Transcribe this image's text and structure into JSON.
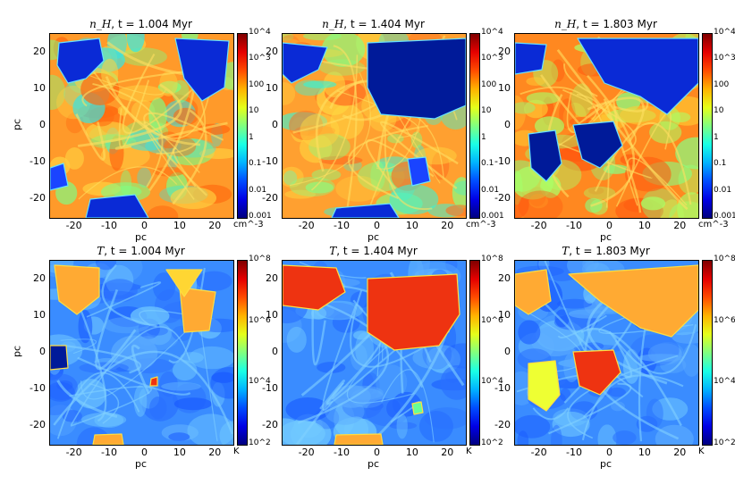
{
  "chart_data": [
    {
      "type": "heatmap",
      "title_var": "n_H",
      "title_time": "t = 1.004 Myr",
      "title": "n_H, t = 1.004 Myr",
      "xlabel": "pc",
      "ylabel": "pc",
      "xlim": [
        -27,
        25
      ],
      "ylim": [
        -25,
        25
      ],
      "x_ticks": [
        "-20",
        "-10",
        "0",
        "10",
        "20"
      ],
      "y_ticks": [
        "20",
        "10",
        "0",
        "-10",
        "-20"
      ],
      "colorbar": {
        "scale": "log",
        "range": [
          0.001,
          10000
        ],
        "tick_labels": [
          "10^4",
          "10^3",
          "100",
          "10",
          "1",
          "0.1",
          "0.01",
          "0.001"
        ],
        "unit": "cm^-3",
        "colormap": "jet"
      },
      "dominant_colors": [
        "#ff8c1a",
        "#ffd633",
        "#66ff99",
        "#0033cc"
      ]
    },
    {
      "type": "heatmap",
      "title_var": "n_H",
      "title_time": "t = 1.404 Myr",
      "title": "n_H, t = 1.404 Myr",
      "xlabel": "pc",
      "ylabel": "",
      "xlim": [
        -27,
        25
      ],
      "ylim": [
        -25,
        25
      ],
      "x_ticks": [
        "-20",
        "-10",
        "0",
        "10",
        "20"
      ],
      "y_ticks": [
        "20",
        "10",
        "0",
        "-10",
        "-20"
      ],
      "colorbar": {
        "scale": "log",
        "range": [
          0.001,
          10000
        ],
        "tick_labels": [
          "10^4",
          "10^3",
          "100",
          "10",
          "1",
          "0.1",
          "0.01",
          "0.001"
        ],
        "unit": "cm^-3",
        "colormap": "jet"
      },
      "dominant_colors": [
        "#ff8c1a",
        "#ffd633",
        "#66ff99",
        "#001a99"
      ]
    },
    {
      "type": "heatmap",
      "title_var": "n_H",
      "title_time": "t = 1.803 Myr",
      "title": "n_H, t = 1.803 Myr",
      "xlabel": "pc",
      "ylabel": "",
      "xlim": [
        -27,
        25
      ],
      "ylim": [
        -25,
        25
      ],
      "x_ticks": [
        "-20",
        "-10",
        "0",
        "10",
        "20"
      ],
      "y_ticks": [
        "20",
        "10",
        "0",
        "-10",
        "-20"
      ],
      "colorbar": {
        "scale": "log",
        "range": [
          0.001,
          10000
        ],
        "tick_labels": [
          "10^4",
          "10^3",
          "100",
          "10",
          "1",
          "0.1",
          "0.01",
          "0.001"
        ],
        "unit": "cm^-3",
        "colormap": "jet"
      },
      "dominant_colors": [
        "#ff7a1a",
        "#ffd633",
        "#66ff99",
        "#001a99"
      ]
    },
    {
      "type": "heatmap",
      "title_var": "T",
      "title_time": "t = 1.004 Myr",
      "title": "T, t = 1.004 Myr",
      "xlabel": "pc",
      "ylabel": "pc",
      "xlim": [
        -27,
        25
      ],
      "ylim": [
        -25,
        25
      ],
      "x_ticks": [
        "-20",
        "-10",
        "0",
        "10",
        "20"
      ],
      "y_ticks": [
        "20",
        "10",
        "0",
        "-10",
        "-20"
      ],
      "colorbar": {
        "scale": "log",
        "range": [
          100,
          100000000
        ],
        "tick_labels": [
          "10^8",
          "10^6",
          "10^4",
          "10^2"
        ],
        "unit": "K",
        "colormap": "jet"
      },
      "dominant_colors": [
        "#3385ff",
        "#66aaff",
        "#ffaa33",
        "#001a99"
      ]
    },
    {
      "type": "heatmap",
      "title_var": "T",
      "title_time": "t = 1.404 Myr",
      "title": "T, t = 1.404 Myr",
      "xlabel": "pc",
      "ylabel": "",
      "xlim": [
        -27,
        25
      ],
      "ylim": [
        -25,
        25
      ],
      "x_ticks": [
        "-20",
        "-10",
        "0",
        "10",
        "20"
      ],
      "y_ticks": [
        "20",
        "10",
        "0",
        "-10",
        "-20"
      ],
      "colorbar": {
        "scale": "log",
        "range": [
          100,
          100000000
        ],
        "tick_labels": [
          "10^8",
          "10^6",
          "10^4",
          "10^2"
        ],
        "unit": "K",
        "colormap": "jet"
      },
      "dominant_colors": [
        "#3385ff",
        "#66aaff",
        "#ee3311",
        "#001a99"
      ]
    },
    {
      "type": "heatmap",
      "title_var": "T",
      "title_time": "t = 1.803 Myr",
      "title": "T, t = 1.803 Myr",
      "xlabel": "pc",
      "ylabel": "",
      "xlim": [
        -27,
        25
      ],
      "ylim": [
        -25,
        25
      ],
      "x_ticks": [
        "-20",
        "-10",
        "0",
        "10",
        "20"
      ],
      "y_ticks": [
        "20",
        "10",
        "0",
        "-10",
        "-20"
      ],
      "colorbar": {
        "scale": "log",
        "range": [
          100,
          100000000
        ],
        "tick_labels": [
          "10^8",
          "10^6",
          "10^4",
          "10^2"
        ],
        "unit": "K",
        "colormap": "jet"
      },
      "dominant_colors": [
        "#3385ff",
        "#ffaa33",
        "#ee3311",
        "#eeff33"
      ]
    }
  ]
}
